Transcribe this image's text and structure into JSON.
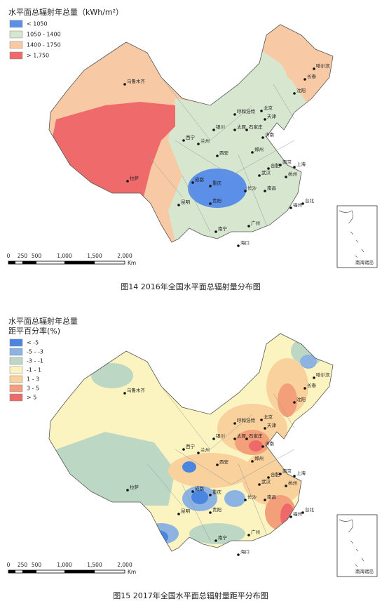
{
  "maps": [
    {
      "legend": {
        "title": [
          "水平面总辐射年总量（kWh/m²）"
        ],
        "items": [
          {
            "label": "< 1050",
            "color": "#5b8fe8"
          },
          {
            "label": "1050 - 1400",
            "color": "#d6e6cf"
          },
          {
            "label": "1400 - 1750",
            "color": "#f7caa5"
          },
          {
            "label": "> 1,750",
            "color": "#ef6b6b"
          }
        ]
      },
      "scale": {
        "ticks": [
          "0",
          "250",
          "500",
          "1,000",
          "1,500",
          "2,000"
        ],
        "unit": "Km"
      },
      "inset_label": "南海诸岛",
      "caption": "图14   2016年全国水平面总辐射量分布图"
    },
    {
      "legend": {
        "title": [
          "水平面总辐射年总量",
          "距平百分率(%)"
        ],
        "items": [
          {
            "label": "< -5",
            "color": "#4a86e0"
          },
          {
            "label": "-5 - -3",
            "color": "#8cb3e2"
          },
          {
            "label": "-3 - -1",
            "color": "#bcd7c3"
          },
          {
            "label": "-1 - 1",
            "color": "#fbf4c0"
          },
          {
            "label": "1 - 3",
            "color": "#f8d19d"
          },
          {
            "label": "3 - 5",
            "color": "#f3a07a"
          },
          {
            "label": "> 5",
            "color": "#ee6a6a"
          }
        ]
      },
      "scale": {
        "ticks": [
          "0",
          "250",
          "500",
          "1,000",
          "1,500",
          "2,000"
        ],
        "unit": "Km"
      },
      "inset_label": "南海诸岛",
      "caption": "图15   2017年全国水平面总辐射量距平分布图"
    }
  ],
  "cities": [
    "乌鲁木齐",
    "哈尔滨",
    "长春",
    "沈阳",
    "呼和浩特",
    "北京",
    "天津",
    "石家庄",
    "银川",
    "太原",
    "济南",
    "西宁",
    "兰州",
    "郑州",
    "西安",
    "合肥",
    "南京",
    "上海",
    "成都",
    "重庆",
    "武汉",
    "杭州",
    "长沙",
    "南昌",
    "福州",
    "拉萨",
    "昆明",
    "贵阳",
    "台北",
    "南宁",
    "广州",
    "海口"
  ]
}
